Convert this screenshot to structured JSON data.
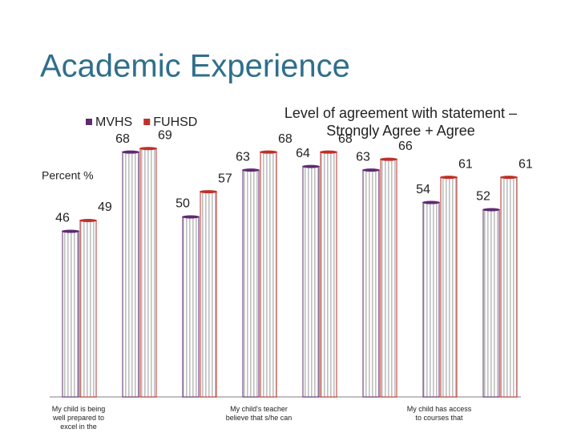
{
  "chart_data": {
    "type": "bar",
    "title": "Academic Experience",
    "subtitle": "Level of agreement with statement – Strongly Agree + Agree",
    "y_label": "Percent %",
    "categories": [
      "My child is being well prepared to excel in the",
      null,
      null,
      "My child's teacher believe that s/he can",
      null,
      null,
      "My child has access to courses that",
      null
    ],
    "series": [
      {
        "name": "MVHS",
        "color": "#5e2b72",
        "values": [
          46,
          68,
          50,
          63,
          64,
          63,
          54,
          52
        ]
      },
      {
        "name": "FUHSD",
        "color": "#c0302a",
        "values": [
          49,
          69,
          57,
          68,
          68,
          66,
          61,
          61
        ]
      }
    ],
    "ylim": [
      0,
      100
    ]
  }
}
